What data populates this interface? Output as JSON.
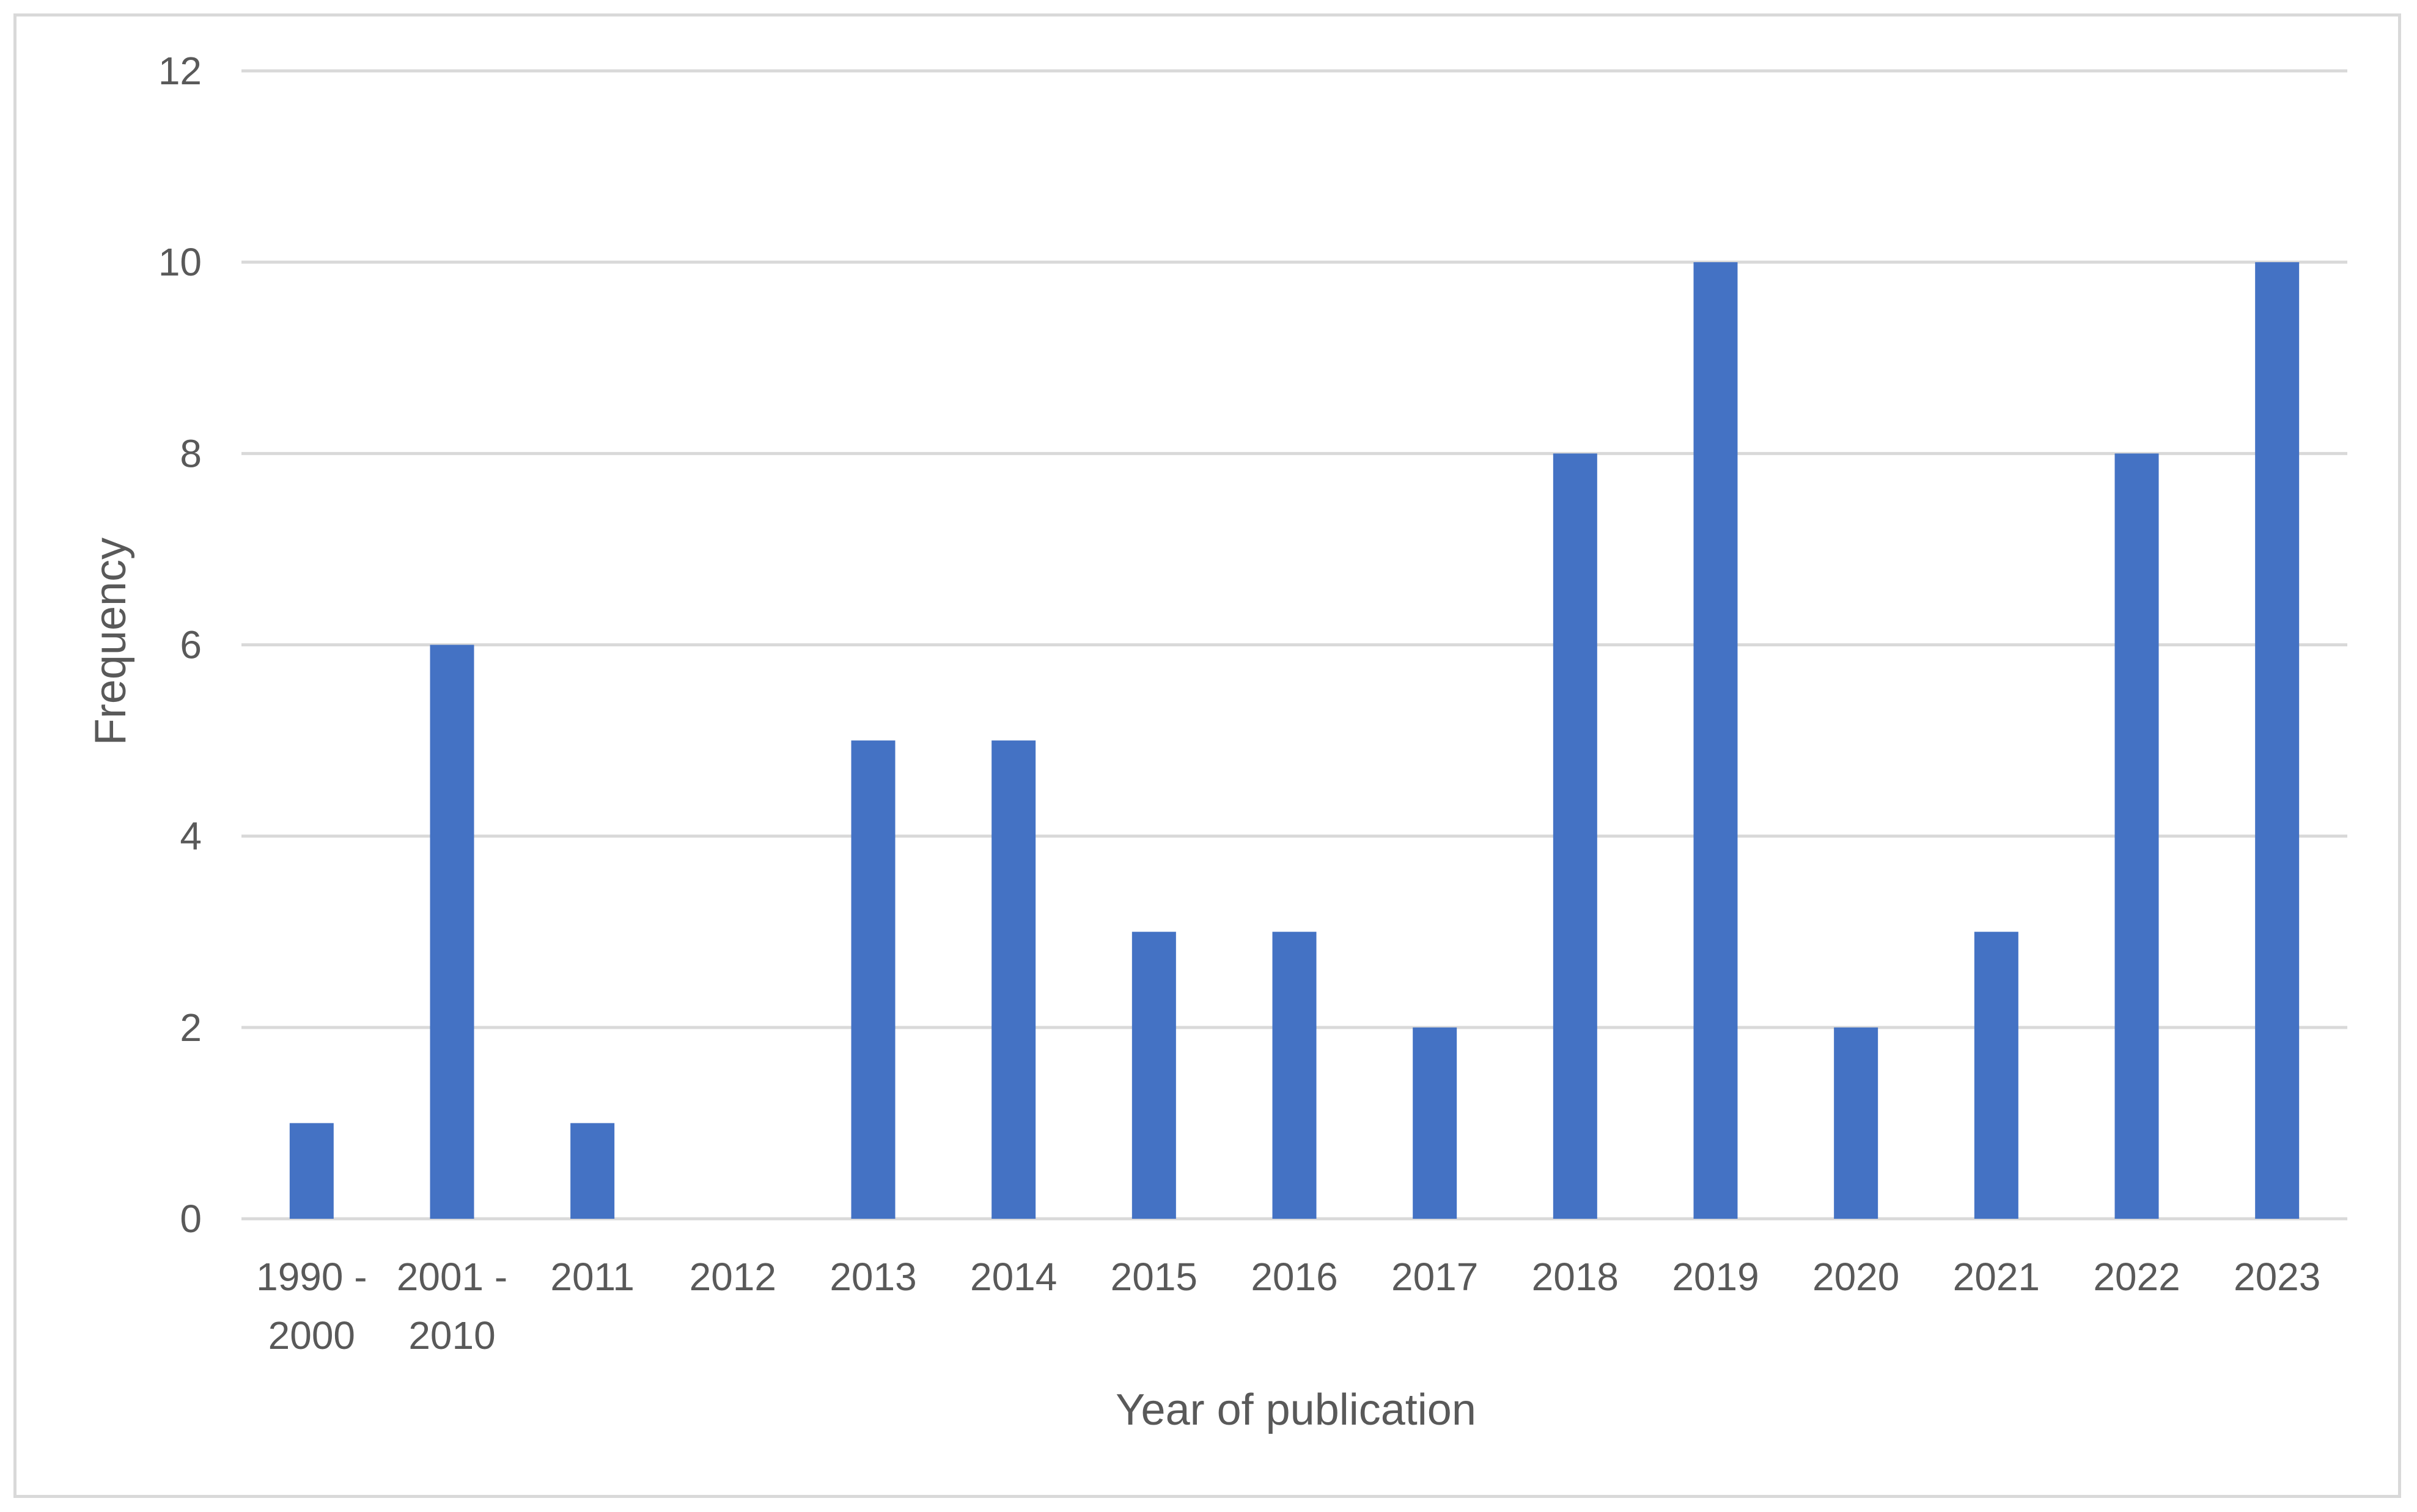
{
  "chart_data": {
    "type": "bar",
    "categories": [
      [
        "1990 -",
        "2000"
      ],
      [
        "2001 -",
        "2010"
      ],
      [
        "2011"
      ],
      [
        "2012"
      ],
      [
        "2013"
      ],
      [
        "2014"
      ],
      [
        "2015"
      ],
      [
        "2016"
      ],
      [
        "2017"
      ],
      [
        "2018"
      ],
      [
        "2019"
      ],
      [
        "2020"
      ],
      [
        "2021"
      ],
      [
        "2022"
      ],
      [
        "2023"
      ]
    ],
    "values": [
      1,
      6,
      1,
      0,
      5,
      5,
      3,
      3,
      2,
      8,
      10,
      2,
      3,
      8,
      10
    ],
    "title": "",
    "xlabel": "Year of publication",
    "ylabel": "Frequency",
    "ylim": [
      0,
      12
    ],
    "yticks": [
      0,
      2,
      4,
      6,
      8,
      10,
      12
    ],
    "grid": true,
    "legend": "none",
    "bar_color": "#4472c4"
  }
}
